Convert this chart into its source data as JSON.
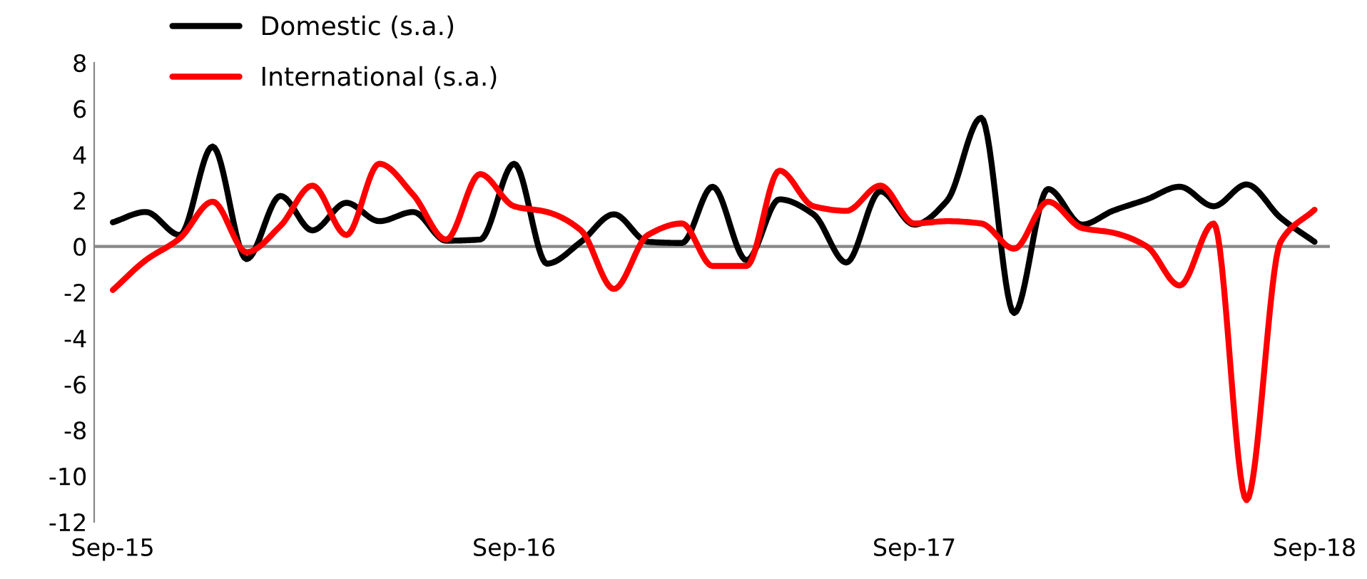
{
  "chart_data": {
    "type": "line",
    "x": [
      "2015-09",
      "2015-10",
      "2015-11",
      "2015-12",
      "2016-01",
      "2016-02",
      "2016-03",
      "2016-04",
      "2016-05",
      "2016-06",
      "2016-07",
      "2016-08",
      "2016-09",
      "2016-10",
      "2016-11",
      "2016-12",
      "2017-01",
      "2017-02",
      "2017-03",
      "2017-04",
      "2017-05",
      "2017-06",
      "2017-07",
      "2017-08",
      "2017-09",
      "2017-10",
      "2017-11",
      "2017-12",
      "2018-01",
      "2018-02",
      "2018-03",
      "2018-04",
      "2018-05",
      "2018-06",
      "2018-07",
      "2018-08",
      "2018-09"
    ],
    "series": [
      {
        "name": "Domestic (s.a.)",
        "color": "#000000",
        "values": [
          1.05,
          1.5,
          0.5,
          4.35,
          -0.55,
          2.2,
          0.7,
          1.9,
          1.1,
          1.5,
          0.25,
          0.3,
          3.6,
          -0.75,
          0.2,
          1.4,
          0.2,
          0.15,
          2.6,
          -0.6,
          2.05,
          1.4,
          -0.7,
          2.4,
          0.95,
          2.0,
          5.6,
          -2.9,
          2.5,
          0.95,
          1.55,
          2.05,
          2.6,
          1.75,
          2.7,
          1.25,
          0.2
        ]
      },
      {
        "name": "International (s.a.)",
        "color": "#ff0000",
        "values": [
          -1.9,
          -0.6,
          0.35,
          1.95,
          -0.25,
          0.9,
          2.65,
          0.5,
          3.6,
          2.25,
          0.3,
          3.15,
          1.75,
          1.5,
          0.7,
          -1.85,
          0.5,
          1.0,
          -0.85,
          -0.85,
          3.3,
          1.75,
          1.55,
          2.65,
          1.0,
          1.1,
          1.0,
          -0.1,
          1.95,
          0.8,
          0.6,
          0.0,
          -1.7,
          1.0,
          -11.05,
          0.2,
          1.6
        ]
      }
    ],
    "xlim": [
      "2015-08-15",
      "2018-09-15"
    ],
    "xticks": [
      {
        "value": "2015-09",
        "label": "Sep-15"
      },
      {
        "value": "2016-09",
        "label": "Sep-16"
      },
      {
        "value": "2017-09",
        "label": "Sep-17"
      },
      {
        "value": "2018-09",
        "label": "Sep-18"
      }
    ],
    "ylim": [
      -12,
      8
    ],
    "yticks": [
      -12,
      -10,
      -8,
      -6,
      -4,
      -2,
      0,
      2,
      4,
      6,
      8
    ],
    "grid": false,
    "ref_lines": [
      {
        "axis": "y",
        "value": 0,
        "color": "#888888"
      }
    ],
    "legend": "top left",
    "marker": "none",
    "line_style": "solid"
  }
}
